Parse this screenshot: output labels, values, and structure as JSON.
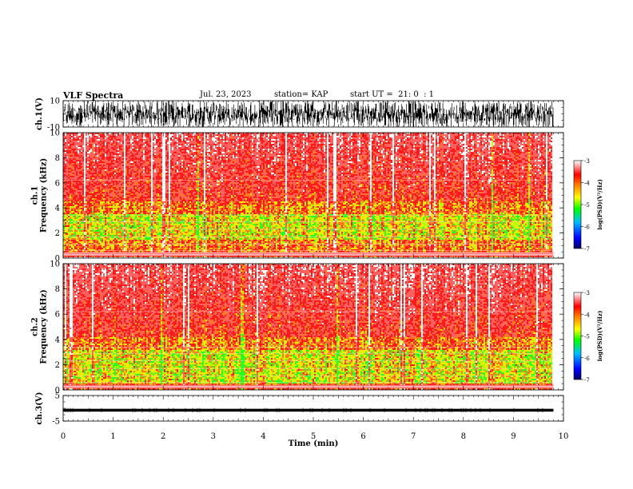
{
  "header": {
    "title": "VLF Spectra",
    "date": "Jul. 23, 2023",
    "station": "station= KAP",
    "start": "start UT =  21: 0  : 1"
  },
  "chart_data": [
    {
      "type": "line",
      "panel": "ch1-waveform",
      "ylabel": "ch.1(V)",
      "ylim": [
        -10,
        10
      ],
      "yticks": [
        "10",
        "-10"
      ],
      "xlim": [
        0,
        10
      ],
      "data_end_min": 9.8,
      "description_values": {
        "amplitude_range": [
          -10,
          10
        ]
      }
    },
    {
      "type": "heatmap",
      "panel": "ch1-spectrogram",
      "ylabel": "ch.1\nFrequency (kHz)",
      "ylim": [
        0,
        10
      ],
      "yticks": [
        "0",
        "2",
        "4",
        "6",
        "8",
        "10"
      ],
      "xlim": [
        0,
        10
      ],
      "data_end_min": 9.8,
      "intense_band_khz": [
        0.5,
        4.5
      ],
      "strongest_band_khz": [
        1.5,
        3.5
      ]
    },
    {
      "type": "heatmap",
      "panel": "ch2-spectrogram",
      "ylabel": "ch.2\nFrequency (kHz)",
      "ylim": [
        0,
        10
      ],
      "yticks": [
        "0",
        "2",
        "4",
        "6",
        "8",
        "10"
      ],
      "xlim": [
        0,
        10
      ],
      "data_end_min": 9.8,
      "intense_band_khz": [
        0.4,
        4.2
      ],
      "strongest_band_khz": [
        0.5,
        3.2
      ]
    },
    {
      "type": "line",
      "panel": "ch3-waveform",
      "ylabel": "ch.3(V)",
      "ylim": [
        -5,
        5
      ],
      "yticks": [
        "5",
        "-5"
      ],
      "xlim": [
        0,
        10
      ],
      "data_end_min": 9.8,
      "level_range": [
        -1.3,
        -0.2
      ]
    }
  ],
  "xaxis": {
    "label": "Time (min)",
    "ticks": [
      "0",
      "1",
      "2",
      "3",
      "4",
      "5",
      "6",
      "7",
      "8",
      "9",
      "10"
    ]
  },
  "colorbar": {
    "label": "log(PSD)(V²/Hz)",
    "range": [
      -7,
      -3
    ],
    "ticks": [
      "-3",
      "-4",
      "-5",
      "-6",
      "-7"
    ],
    "colors": [
      "#000080",
      "#0000ff",
      "#00c0ff",
      "#00ff00",
      "#ffff00",
      "#ff8000",
      "#ff0000",
      "#ffffff"
    ]
  }
}
